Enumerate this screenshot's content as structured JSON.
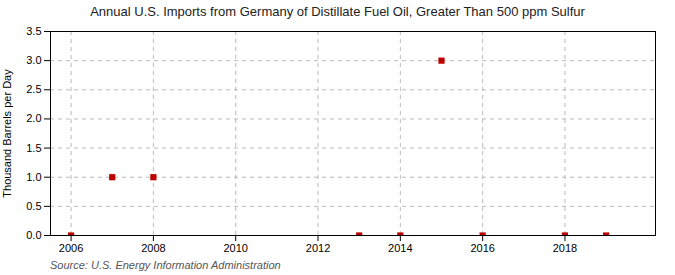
{
  "chart_data": {
    "type": "scatter",
    "title": "Annual U.S. Imports from Germany of Distillate Fuel Oil, Greater Than 500 ppm Sulfur",
    "ylabel": "Thousand Barrels per Day",
    "caption": "Source: U.S. Energy Information Administration",
    "x": [
      2006,
      2007,
      2008,
      2013,
      2014,
      2015,
      2016,
      2018,
      2019
    ],
    "values": [
      0.0,
      1.0,
      1.0,
      0.0,
      0.0,
      3.0,
      0.0,
      0.0,
      0.0
    ],
    "color": "#bb0000",
    "marker": "square",
    "xlim": [
      2005.5,
      2020.2
    ],
    "ylim": [
      0.0,
      3.5
    ],
    "xticks": [
      2006,
      2008,
      2010,
      2012,
      2014,
      2016,
      2018
    ],
    "yticks": [
      {
        "value": 0.0,
        "label": "0.0"
      },
      {
        "value": 0.5,
        "label": "0.5"
      },
      {
        "value": 1.0,
        "label": "1.0"
      },
      {
        "value": 1.5,
        "label": "1.5"
      },
      {
        "value": 2.0,
        "label": "2.0"
      },
      {
        "value": 2.5,
        "label": "2.5"
      },
      {
        "value": 3.0,
        "label": "3.0"
      },
      {
        "value": 3.5,
        "label": "3.5"
      }
    ],
    "grid": true
  }
}
